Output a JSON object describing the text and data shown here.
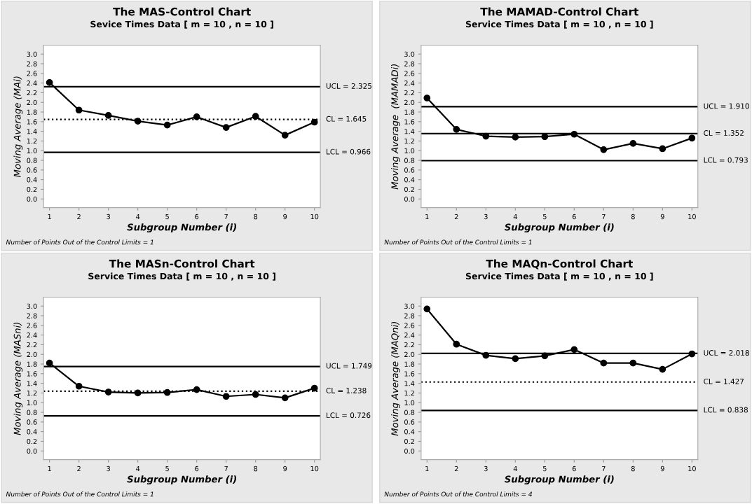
{
  "chart_data": [
    {
      "type": "line",
      "title": "The MAS-Control Chart",
      "subtitle": "Sevice Times Data [ m = 10 , n = 10 ]",
      "xlabel": "Subgroup Number (i)",
      "ylabel": "Moving Average (MAi)",
      "x": [
        1,
        2,
        3,
        4,
        5,
        6,
        7,
        8,
        9,
        10
      ],
      "series": [
        {
          "color": "#000000",
          "values": [
            2.41,
            1.84,
            1.73,
            1.61,
            1.53,
            1.7,
            1.48,
            1.71,
            1.32,
            1.59
          ]
        }
      ],
      "marker": "circle",
      "line_style": "solid",
      "grid": false,
      "xlim": [
        0.8,
        10.2
      ],
      "xticks": [
        1,
        2,
        3,
        4,
        5,
        6,
        7,
        8,
        9,
        10
      ],
      "ylim": [
        -0.18,
        3.18
      ],
      "yticks": [
        {
          "value": 0,
          "label": "0.0"
        },
        0.2,
        0.4,
        0.6,
        0.8,
        {
          "value": 1,
          "label": "1.0"
        },
        1.2,
        1.4,
        1.6,
        1.8,
        {
          "value": 2,
          "label": "2.0"
        },
        2.2,
        2.4,
        2.6,
        2.8,
        {
          "value": 3,
          "label": "3.0"
        }
      ],
      "ref_lines": [
        {
          "axis": "y",
          "value": 2.325,
          "label": "UCL = 2.325",
          "color": "#000000",
          "line_style": "solid"
        },
        {
          "axis": "y",
          "value": 1.645,
          "label": "CL = 1.645",
          "color": "#000000",
          "line_style": "dotted"
        },
        {
          "axis": "y",
          "value": 0.966,
          "label": "LCL = 0.966",
          "color": "#000000",
          "line_style": "solid"
        }
      ],
      "annotations": [
        "Number of Points Out of the Control Limits = 1"
      ]
    },
    {
      "type": "line",
      "title": "The MAMAD-Control Chart",
      "subtitle": "Service Times Data [ m = 10 , n = 10 ]",
      "xlabel": "Subgroup Number (i)",
      "ylabel": "Moving Average  (MAMADi)",
      "x": [
        1,
        2,
        3,
        4,
        5,
        6,
        7,
        8,
        9,
        10
      ],
      "series": [
        {
          "color": "#000000",
          "values": [
            2.09,
            1.44,
            1.3,
            1.28,
            1.29,
            1.34,
            1.02,
            1.15,
            1.04,
            1.26
          ]
        }
      ],
      "marker": "circle",
      "line_style": "solid",
      "grid": false,
      "xlim": [
        0.8,
        10.2
      ],
      "xticks": [
        1,
        2,
        3,
        4,
        5,
        6,
        7,
        8,
        9,
        10
      ],
      "ylim": [
        -0.18,
        3.18
      ],
      "yticks": [
        {
          "value": 0,
          "label": "0.0"
        },
        0.2,
        0.4,
        0.6,
        0.8,
        {
          "value": 1,
          "label": "1.0"
        },
        1.2,
        1.4,
        1.6,
        1.8,
        {
          "value": 2,
          "label": "2.0"
        },
        2.2,
        2.4,
        2.6,
        2.8,
        {
          "value": 3,
          "label": "3.0"
        }
      ],
      "ref_lines": [
        {
          "axis": "y",
          "value": 1.91,
          "label": "UCL = 1.910",
          "color": "#000000",
          "line_style": "solid"
        },
        {
          "axis": "y",
          "value": 1.352,
          "label": "CL = 1.352",
          "color": "#000000",
          "line_style": "solid"
        },
        {
          "axis": "y",
          "value": 0.793,
          "label": "LCL = 0.793",
          "color": "#000000",
          "line_style": "solid"
        }
      ],
      "annotations": [
        "Number of Points Out of the Control Limits = 1"
      ]
    },
    {
      "type": "line",
      "title": "The MASn-Control Chart",
      "subtitle": "Service Times Data [ m = 10 , n = 10 ]",
      "xlabel": "Subgroup Number (i)",
      "ylabel": "Moving Average (MASni)",
      "x": [
        1,
        2,
        3,
        4,
        5,
        6,
        7,
        8,
        9,
        10
      ],
      "series": [
        {
          "color": "#000000",
          "values": [
            1.82,
            1.34,
            1.22,
            1.2,
            1.21,
            1.27,
            1.13,
            1.17,
            1.1,
            1.3
          ]
        }
      ],
      "marker": "circle",
      "line_style": "solid",
      "grid": false,
      "xlim": [
        0.8,
        10.2
      ],
      "xticks": [
        1,
        2,
        3,
        4,
        5,
        6,
        7,
        8,
        9,
        10
      ],
      "ylim": [
        -0.18,
        3.18
      ],
      "yticks": [
        {
          "value": 0,
          "label": "0.0"
        },
        0.2,
        0.4,
        0.6,
        0.8,
        {
          "value": 1,
          "label": "1.0"
        },
        1.2,
        1.4,
        1.6,
        1.8,
        {
          "value": 2,
          "label": "2.0"
        },
        2.2,
        2.4,
        2.6,
        2.8,
        {
          "value": 3,
          "label": "3.0"
        }
      ],
      "ref_lines": [
        {
          "axis": "y",
          "value": 1.749,
          "label": "UCL = 1.749",
          "color": "#000000",
          "line_style": "solid"
        },
        {
          "axis": "y",
          "value": 1.238,
          "label": "CL = 1.238",
          "color": "#000000",
          "line_style": "dotted"
        },
        {
          "axis": "y",
          "value": 0.726,
          "label": "LCL = 0.726",
          "color": "#000000",
          "line_style": "solid"
        }
      ],
      "annotations": [
        "Number of Points Out of the Control Limits = 1"
      ]
    },
    {
      "type": "line",
      "title": "The MAQn-Control Chart",
      "subtitle": "Service Times Data [ m = 10 , n = 10 ]",
      "xlabel": "Subgroup Number (i)",
      "ylabel": "Moving Average (MAQni)",
      "x": [
        1,
        2,
        3,
        4,
        5,
        6,
        7,
        8,
        9,
        10
      ],
      "series": [
        {
          "color": "#000000",
          "values": [
            2.94,
            2.21,
            1.98,
            1.91,
            1.97,
            2.1,
            1.82,
            1.82,
            1.69,
            2.01
          ]
        }
      ],
      "marker": "circle",
      "line_style": "solid",
      "grid": false,
      "xlim": [
        0.8,
        10.2
      ],
      "xticks": [
        1,
        2,
        3,
        4,
        5,
        6,
        7,
        8,
        9,
        10
      ],
      "ylim": [
        -0.18,
        3.18
      ],
      "yticks": [
        {
          "value": 0,
          "label": "0.0"
        },
        0.2,
        0.4,
        0.6,
        0.8,
        {
          "value": 1,
          "label": "1.0"
        },
        1.2,
        1.4,
        1.6,
        1.8,
        {
          "value": 2,
          "label": "2.0"
        },
        2.2,
        2.4,
        2.6,
        2.8,
        {
          "value": 3,
          "label": "3.0"
        }
      ],
      "ref_lines": [
        {
          "axis": "y",
          "value": 2.018,
          "label": "UCL = 2.018",
          "color": "#000000",
          "line_style": "solid"
        },
        {
          "axis": "y",
          "value": 1.427,
          "label": "CL = 1.427",
          "color": "#000000",
          "line_style": "dotted"
        },
        {
          "axis": "y",
          "value": 0.838,
          "label": "LCL = 0.838",
          "color": "#000000",
          "line_style": "solid"
        }
      ],
      "annotations": [
        "Number of Points Out of the Control Limits = 4"
      ]
    }
  ]
}
